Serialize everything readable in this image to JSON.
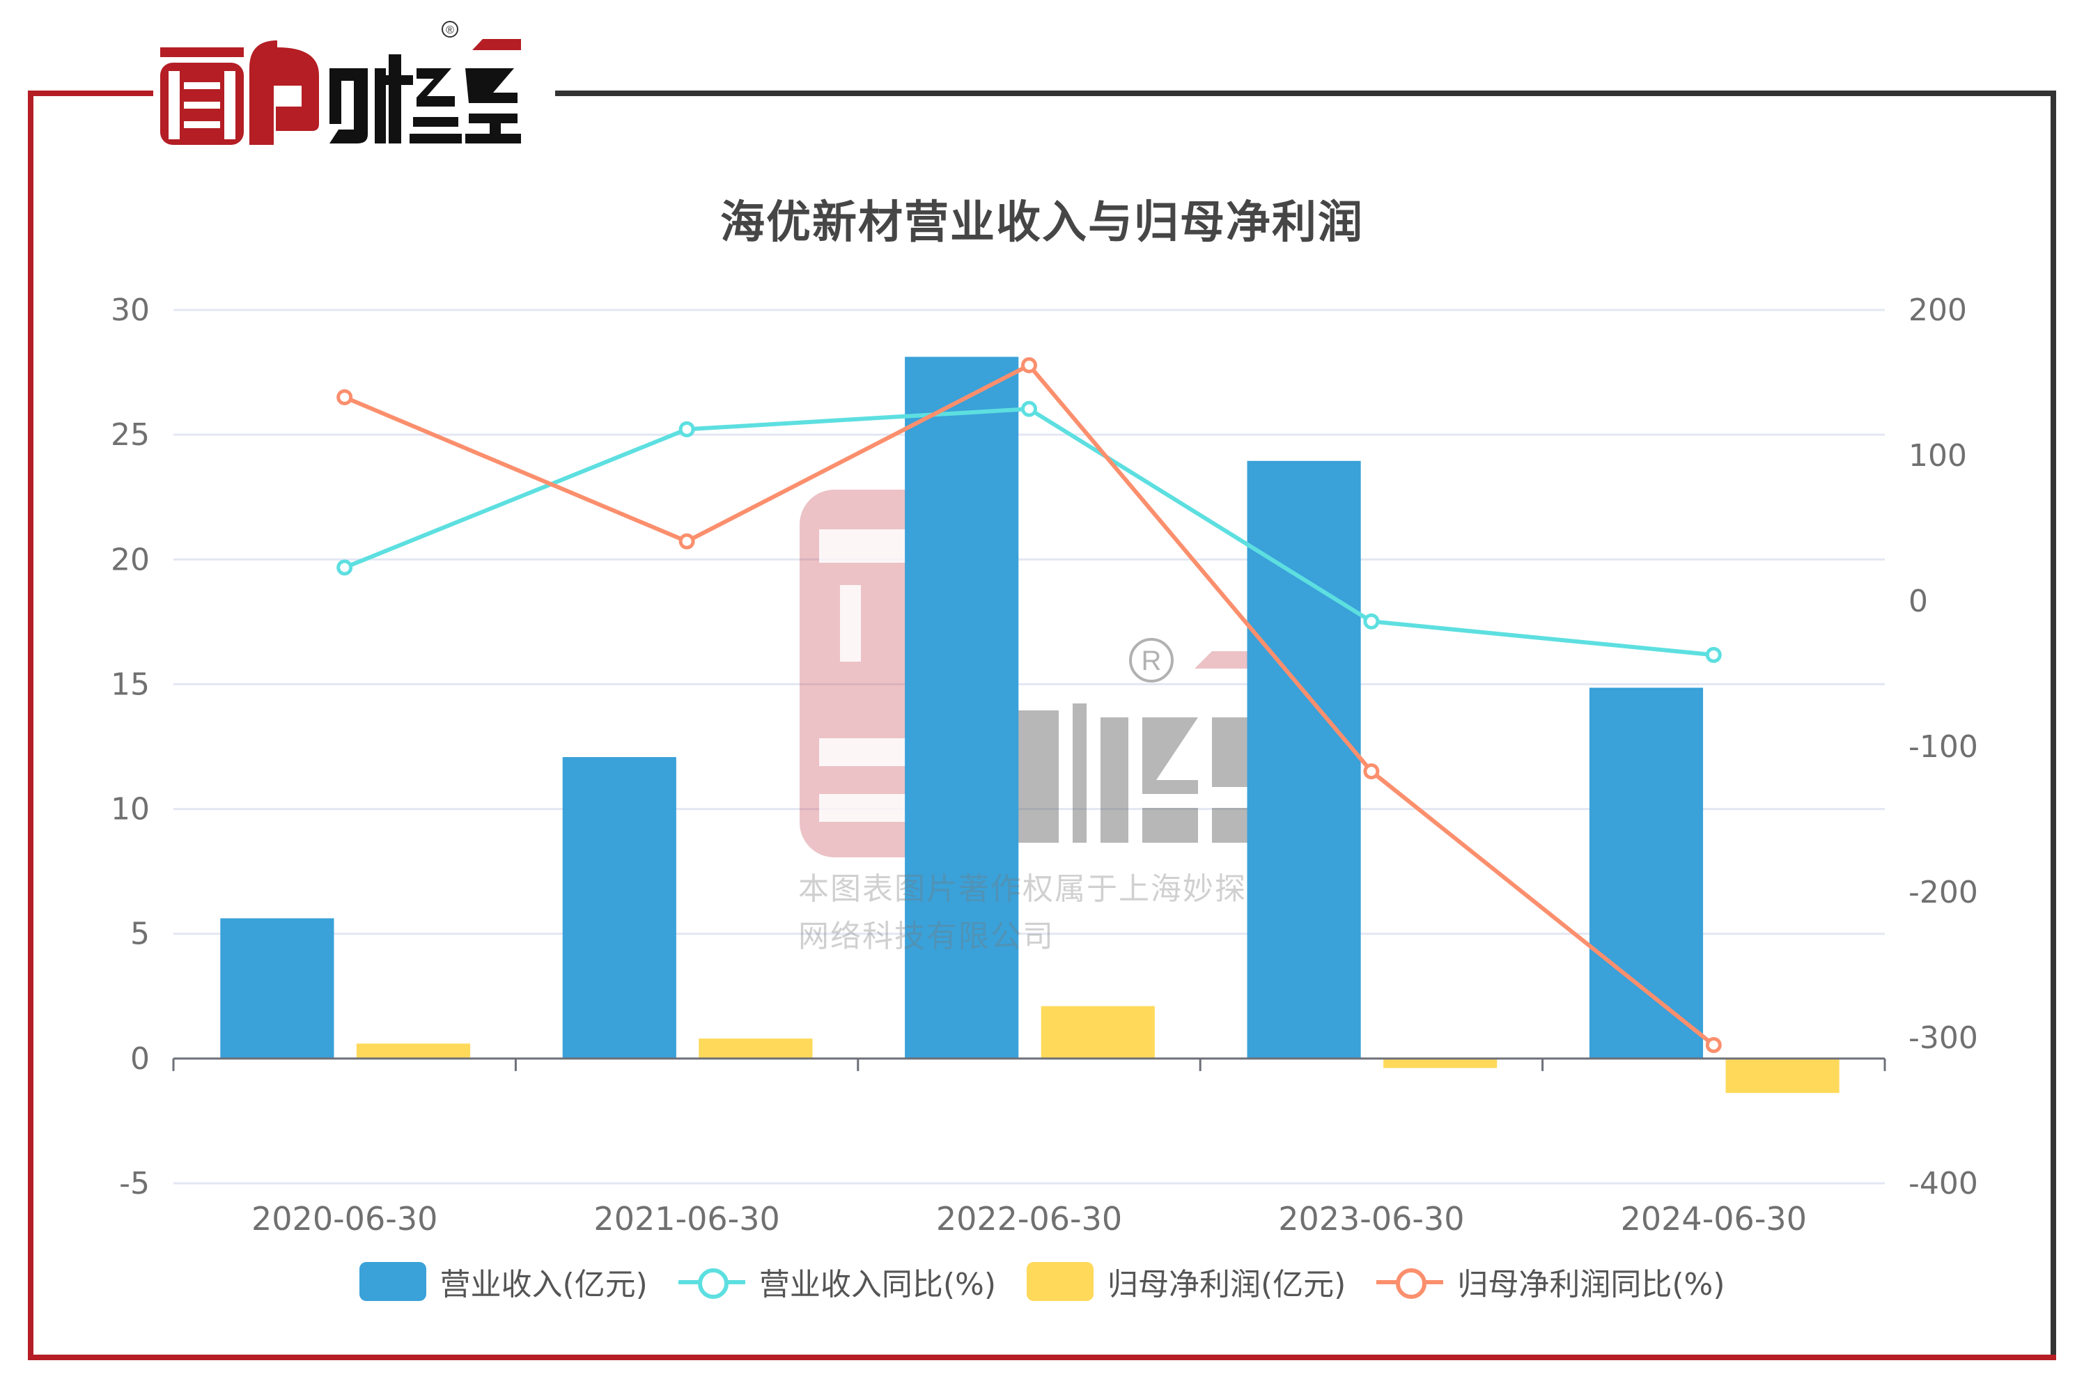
{
  "brand": {
    "logo_text": "面包财经",
    "registered_mark": "®",
    "frame_colors": {
      "red": "#b41e24",
      "dark": "#333333"
    }
  },
  "watermark": {
    "line1": "本图表图片著作权属于上海妙探",
    "line2": "网络科技有限公司"
  },
  "chart_data": {
    "type": "bar",
    "title": "海优新材营业收入与归母净利润",
    "categories": [
      "2020-06-30",
      "2021-06-30",
      "2022-06-30",
      "2023-06-30",
      "2024-06-30"
    ],
    "series": [
      {
        "name": "营业收入(亿元)",
        "type": "bar",
        "axis": "left",
        "color": "#3aa1d9",
        "values": [
          5.62,
          12.08,
          28.12,
          23.95,
          14.86
        ]
      },
      {
        "name": "营业收入同比(%)",
        "type": "line",
        "axis": "right",
        "color": "#5ddfe0",
        "values": [
          23,
          118,
          132,
          -14,
          -37
        ]
      },
      {
        "name": "归母净利润(亿元)",
        "type": "bar",
        "axis": "left",
        "color": "#ffd95a",
        "values": [
          0.6,
          0.8,
          2.1,
          -0.38,
          -1.38
        ]
      },
      {
        "name": "归母净利润同比(%)",
        "type": "line",
        "axis": "right",
        "color": "#fb8f6d",
        "values": [
          140,
          41,
          162,
          -117,
          -305
        ]
      }
    ],
    "left_axis": {
      "ticks": [
        30,
        25,
        20,
        15,
        10,
        5,
        0,
        -5
      ],
      "ylim": [
        -5,
        30
      ]
    },
    "right_axis": {
      "ticks": [
        200,
        100,
        0,
        -100,
        -200,
        -300,
        -400
      ],
      "ylim": [
        -400,
        200
      ]
    },
    "xlabel": "",
    "ylabel": "",
    "grid": true,
    "legend_position": "bottom"
  }
}
